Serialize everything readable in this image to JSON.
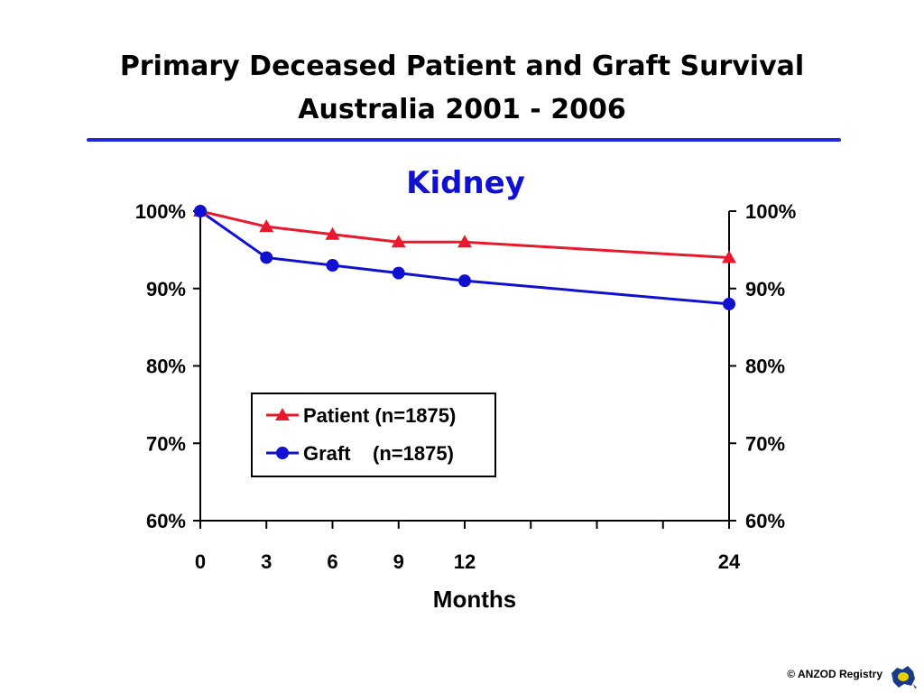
{
  "header": {
    "title_line1": "Primary Deceased Patient and Graft Survival",
    "title_line2": "Australia   2001 - 2006"
  },
  "footer": {
    "copyright": "© ANZOD Registry"
  },
  "colors": {
    "rule": "#1f2bd9",
    "patient": "#e8192c",
    "graft": "#1010d0",
    "subtitle": "#1010d0"
  },
  "chart_data": {
    "type": "line",
    "title": "Kidney",
    "xlabel": "Months",
    "ylabel": "",
    "x": [
      0,
      3,
      6,
      9,
      12,
      24
    ],
    "x_ticks": [
      0,
      3,
      6,
      9,
      12,
      15,
      18,
      21,
      24
    ],
    "x_tick_labels": [
      "0",
      "3",
      "6",
      "9",
      "12",
      "24"
    ],
    "xlim": [
      0,
      24
    ],
    "ylim": [
      60,
      100
    ],
    "y_ticks": [
      60,
      70,
      80,
      90,
      100
    ],
    "y_tick_labels": [
      "60%",
      "70%",
      "80%",
      "90%",
      "100%"
    ],
    "secondary_y_axis": true,
    "grid": false,
    "legend_position": "center",
    "series": [
      {
        "name": "Patient (n=1875)",
        "marker": "triangle",
        "color": "#e8192c",
        "values": [
          100,
          98,
          97,
          96,
          96,
          94
        ]
      },
      {
        "name": "Graft    (n=1875)",
        "marker": "circle",
        "color": "#1010d0",
        "values": [
          100,
          94,
          93,
          92,
          91,
          88
        ]
      }
    ]
  }
}
